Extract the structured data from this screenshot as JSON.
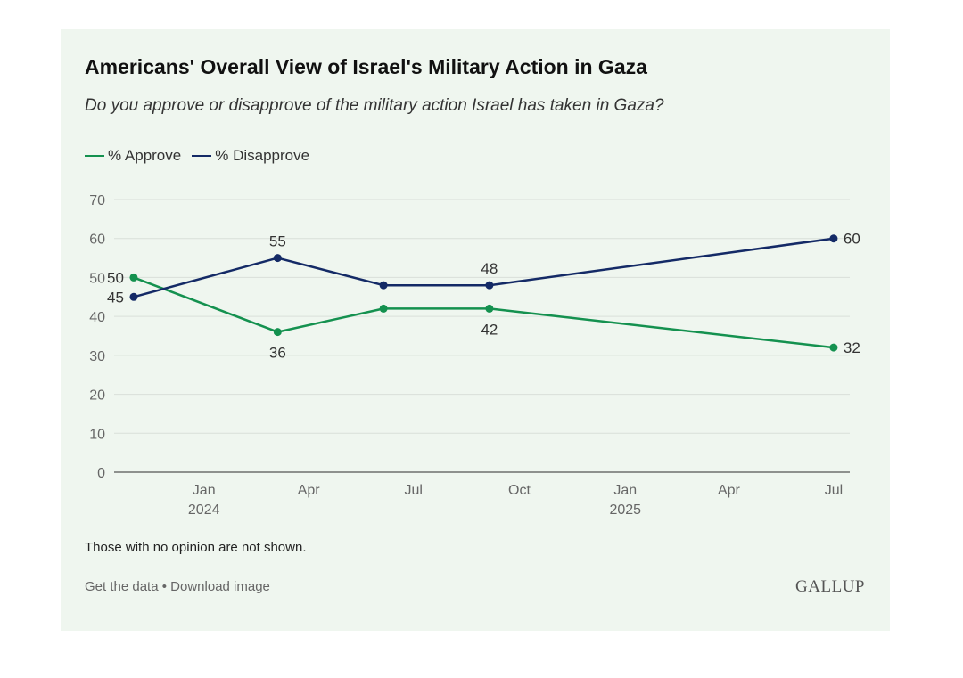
{
  "header": {
    "title": "Americans' Overall View of Israel's Military Action in Gaza",
    "subtitle": "Do you approve or disapprove of the military action Israel has taken in Gaza?"
  },
  "footer": {
    "note": "Those with no opinion are not shown.",
    "get_data": "Get the data",
    "separator": "•",
    "download": "Download image",
    "logo": "GALLUP"
  },
  "colors": {
    "approve": "#14914f",
    "disapprove": "#142a66",
    "grid": "#d9dfd9",
    "axis": "#555555",
    "tick_text": "#666666",
    "label_text": "#333333"
  },
  "chart_data": {
    "type": "line",
    "ylim": [
      0,
      70
    ],
    "yticks": [
      0,
      10,
      20,
      30,
      40,
      50,
      60,
      70
    ],
    "xlim": [
      "2023-10-15",
      "2025-07-15"
    ],
    "xticks": [
      {
        "date": "2024-01-01",
        "label": "Jan",
        "year": "2024"
      },
      {
        "date": "2024-04-01",
        "label": "Apr",
        "year": ""
      },
      {
        "date": "2024-07-01",
        "label": "Jul",
        "year": ""
      },
      {
        "date": "2024-10-01",
        "label": "Oct",
        "year": ""
      },
      {
        "date": "2025-01-01",
        "label": "Jan",
        "year": "2025"
      },
      {
        "date": "2025-04-01",
        "label": "Apr",
        "year": ""
      },
      {
        "date": "2025-07-01",
        "label": "Jul",
        "year": ""
      }
    ],
    "grid": true,
    "legend_position": "top-left",
    "series": [
      {
        "name": "% Approve",
        "color": "#14914f",
        "points": [
          {
            "date": "2023-11-01",
            "value": 50,
            "label": "50",
            "label_pos": "left"
          },
          {
            "date": "2024-03-05",
            "value": 36,
            "label": "36",
            "label_pos": "below"
          },
          {
            "date": "2024-06-05",
            "value": 42,
            "label": "",
            "label_pos": ""
          },
          {
            "date": "2024-09-05",
            "value": 42,
            "label": "42",
            "label_pos": "below"
          },
          {
            "date": "2025-07-01",
            "value": 32,
            "label": "32",
            "label_pos": "right"
          }
        ]
      },
      {
        "name": "% Disapprove",
        "color": "#142a66",
        "points": [
          {
            "date": "2023-11-01",
            "value": 45,
            "label": "45",
            "label_pos": "left"
          },
          {
            "date": "2024-03-05",
            "value": 55,
            "label": "55",
            "label_pos": "above"
          },
          {
            "date": "2024-06-05",
            "value": 48,
            "label": "",
            "label_pos": ""
          },
          {
            "date": "2024-09-05",
            "value": 48,
            "label": "48",
            "label_pos": "above"
          },
          {
            "date": "2025-07-01",
            "value": 60,
            "label": "60",
            "label_pos": "right"
          }
        ]
      }
    ]
  }
}
